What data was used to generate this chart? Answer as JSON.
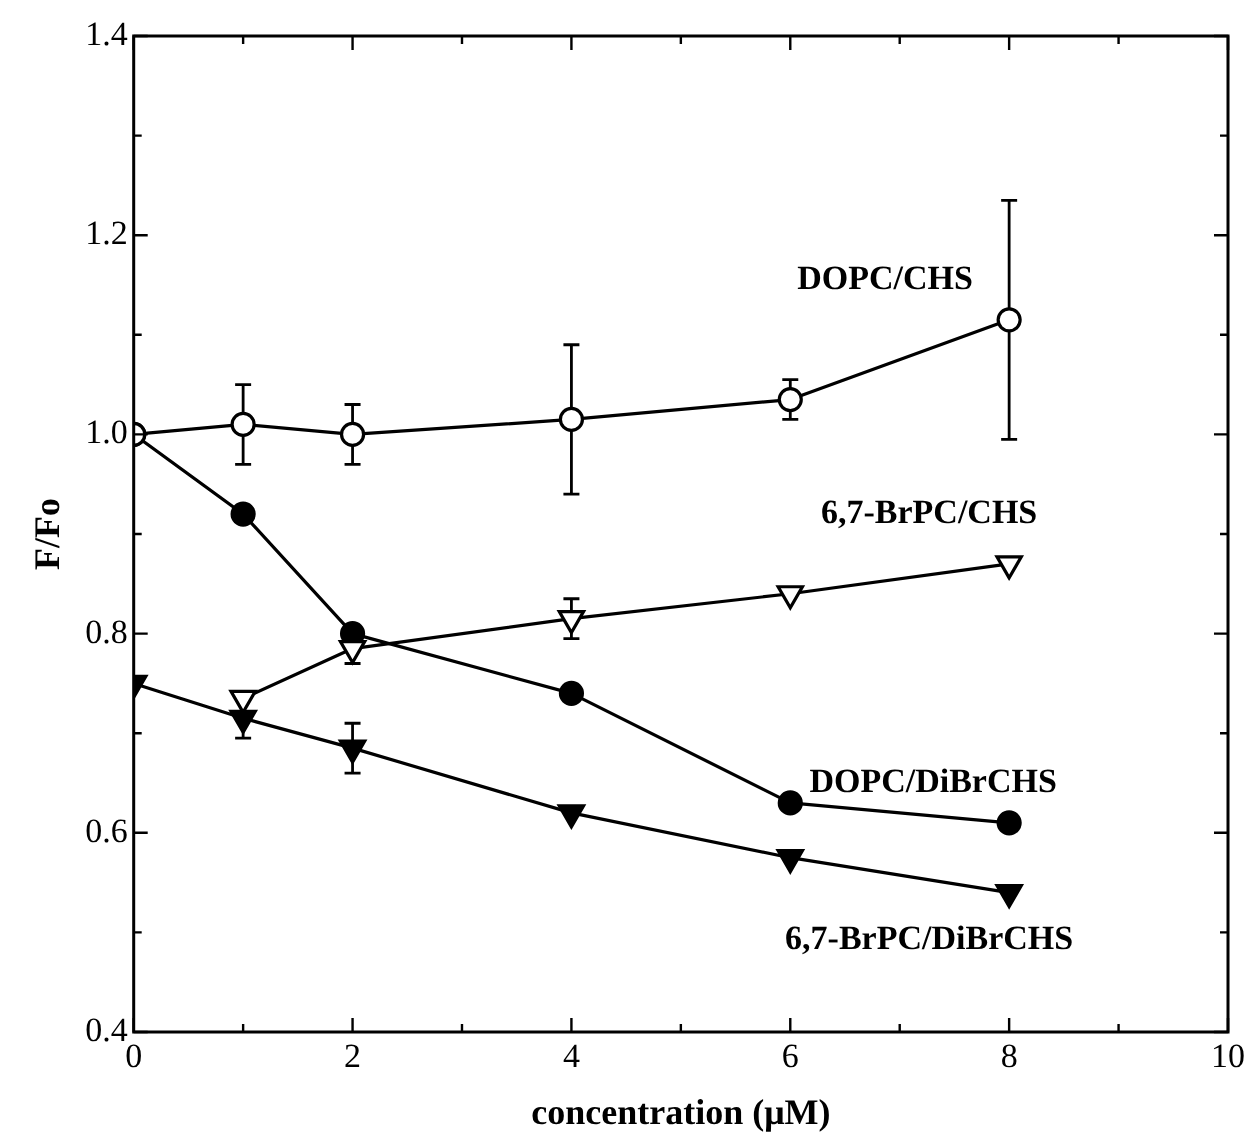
{
  "chart_data": {
    "type": "line",
    "xlabel": "concentration (μM)",
    "ylabel": "F/Fo",
    "x": [
      0,
      1,
      2,
      4,
      6,
      8
    ],
    "xlim": [
      0,
      10
    ],
    "xticks": [
      0,
      {
        "value": 1,
        "label": null
      },
      2,
      {
        "value": 3,
        "label": null
      },
      4,
      {
        "value": 5,
        "label": null
      },
      6,
      {
        "value": 7,
        "label": null
      },
      8,
      {
        "value": 9,
        "label": null
      },
      10
    ],
    "ylim": [
      0.4,
      1.4
    ],
    "yticks": [
      0.4,
      {
        "value": 0.5,
        "label": null
      },
      0.6,
      {
        "value": 0.7,
        "label": null
      },
      0.8,
      {
        "value": 0.9,
        "label": null
      },
      {
        "value": 1.0,
        "label": "1.0"
      },
      {
        "value": 1.1,
        "label": null
      },
      1.2,
      {
        "value": 1.3,
        "label": null
      },
      1.4
    ],
    "grid": false,
    "legend": false,
    "line_style": "solid",
    "series": [
      {
        "name": "DOPC/CHS",
        "color": "#000000",
        "marker": "circle",
        "values": [
          1.0,
          1.01,
          1.0,
          1.015,
          1.035,
          1.115
        ],
        "errors": [
          null,
          0.04,
          0.03,
          0.075,
          0.02,
          0.12
        ]
      },
      {
        "name": "6,7-BrPC/CHS",
        "color": "#000000",
        "marker": "triangle",
        "values": [
          null,
          0.735,
          0.785,
          0.815,
          0.84,
          0.87
        ],
        "errors": [
          null,
          null,
          0.015,
          0.02,
          null,
          null
        ]
      },
      {
        "name": "DOPC/DiBrCHS",
        "color": "#000000",
        "marker": "circle",
        "values": [
          1.0,
          0.92,
          0.8,
          0.74,
          0.63,
          0.61
        ]
      },
      {
        "name": "6,7-BrPC/DiBrCHS",
        "color": "#000000",
        "marker": "triangle",
        "values": [
          0.75,
          0.715,
          0.685,
          0.62,
          0.575,
          0.54
        ],
        "errors": [
          null,
          0.02,
          0.025,
          null,
          null,
          null
        ]
      }
    ]
  }
}
